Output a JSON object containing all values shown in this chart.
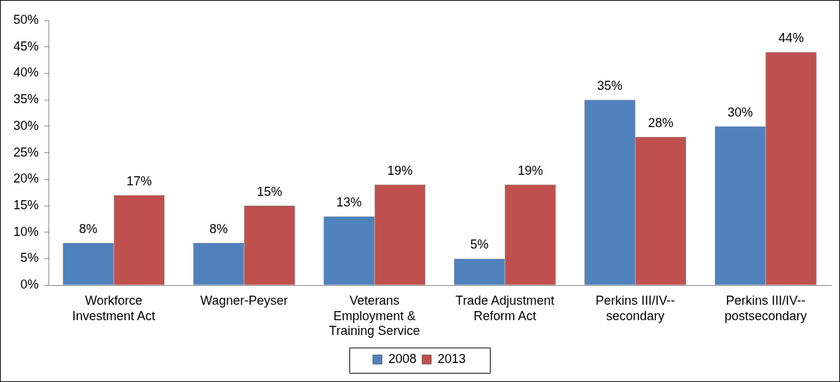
{
  "chart_data": {
    "type": "bar",
    "categories": [
      "Workforce Investment Act",
      "Wagner-Peyser",
      "Veterans Employment & Training Service",
      "Trade Adjustment Reform Act",
      "Perkins III/IV--secondary",
      "Perkins III/IV--postsecondary"
    ],
    "series": [
      {
        "name": "2008",
        "color": "#4f81bd",
        "values": [
          8,
          8,
          13,
          5,
          35,
          30
        ],
        "value_labels": [
          "8%",
          "8%",
          "13%",
          "5%",
          "35%",
          "30%"
        ]
      },
      {
        "name": "2013",
        "color": "#c0504d",
        "values": [
          17,
          15,
          19,
          19,
          28,
          44
        ],
        "value_labels": [
          "17%",
          "15%",
          "19%",
          "19%",
          "28%",
          "44%"
        ]
      }
    ],
    "ylim": [
      0,
      50
    ],
    "yticks": [
      {
        "value": 0,
        "label": "0%"
      },
      {
        "value": 5,
        "label": "5%"
      },
      {
        "value": 10,
        "label": "10%"
      },
      {
        "value": 15,
        "label": "15%"
      },
      {
        "value": 20,
        "label": "20%"
      },
      {
        "value": 25,
        "label": "25%"
      },
      {
        "value": 30,
        "label": "30%"
      },
      {
        "value": 35,
        "label": "35%"
      },
      {
        "value": 40,
        "label": "40%"
      },
      {
        "value": 45,
        "label": "45%"
      },
      {
        "value": 50,
        "label": "50%"
      }
    ],
    "grid": false,
    "legend": "bottom"
  }
}
